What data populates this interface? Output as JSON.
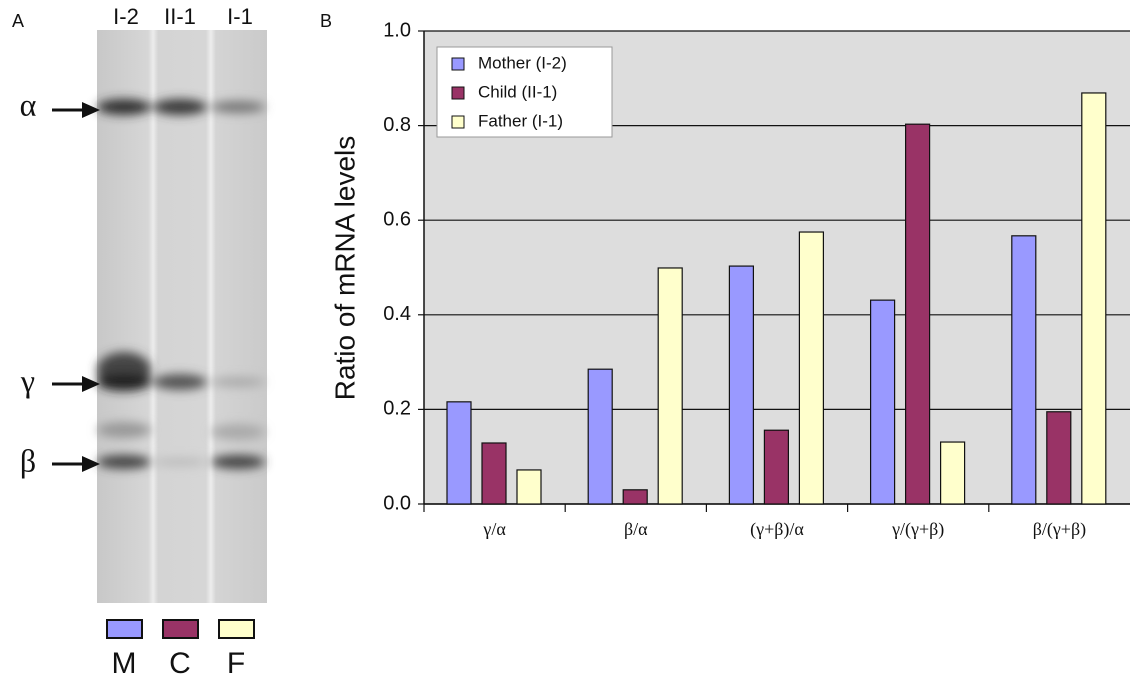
{
  "panel_a": {
    "label": "A",
    "lanes": [
      "I-2",
      "II-1",
      "I-1"
    ],
    "bands": [
      "α",
      "γ",
      "β"
    ],
    "swatch_labels": [
      "M",
      "C",
      "F"
    ]
  },
  "chart_data": {
    "type": "bar",
    "label": "B",
    "y_label": "Ratio of mRNA levels",
    "categories": [
      "γ/α",
      "β/α",
      "(γ+β)/α",
      "γ/(γ+β)",
      "β/(γ+β)"
    ],
    "series": [
      {
        "name": "Mother (I-2)",
        "color": "#9999ff",
        "values": [
          0.216,
          0.285,
          0.503,
          0.431,
          0.567
        ]
      },
      {
        "name": "Child (II-1)",
        "color": "#993366",
        "values": [
          0.129,
          0.03,
          0.156,
          0.803,
          0.195
        ]
      },
      {
        "name": "Father (I-1)",
        "color": "#ffffcc",
        "values": [
          0.072,
          0.499,
          0.575,
          0.131,
          0.869
        ]
      }
    ],
    "ylim": [
      0,
      1
    ],
    "yticks": [
      {
        "value": 0,
        "label": "0.0"
      },
      0.2,
      0.4,
      0.6,
      0.8,
      {
        "value": 1,
        "label": "1.0"
      }
    ],
    "grid": true,
    "legend": "upper left"
  }
}
